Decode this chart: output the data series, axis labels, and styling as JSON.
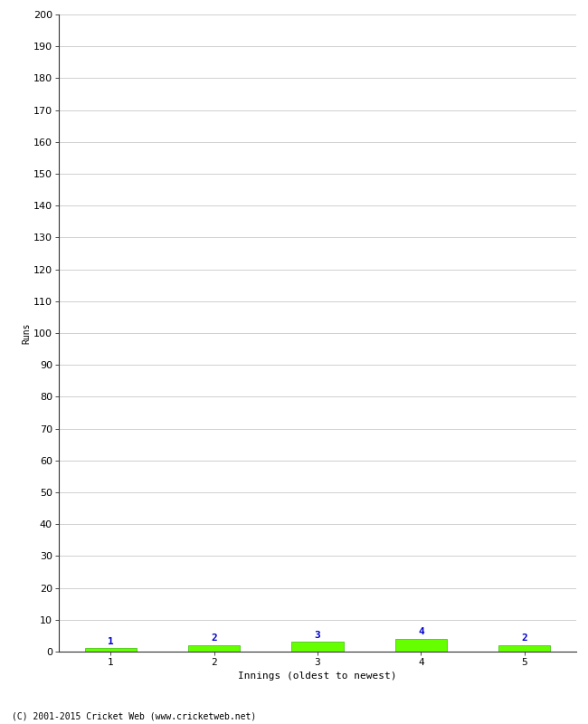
{
  "innings": [
    1,
    2,
    3,
    4,
    5
  ],
  "runs": [
    1,
    2,
    3,
    4,
    2
  ],
  "scores": [
    1,
    2,
    3,
    4,
    2
  ],
  "bar_color": "#66ff00",
  "bar_edge_color": "#33bb00",
  "label_color": "#0000cc",
  "xlabel": "Innings (oldest to newest)",
  "ylabel": "Runs",
  "ylim": [
    0,
    200
  ],
  "yticks": [
    0,
    10,
    20,
    30,
    40,
    50,
    60,
    70,
    80,
    90,
    100,
    110,
    120,
    130,
    140,
    150,
    160,
    170,
    180,
    190,
    200
  ],
  "xticks": [
    1,
    2,
    3,
    4,
    5
  ],
  "grid_color": "#d0d0d0",
  "background_color": "#ffffff",
  "footer_text": "(C) 2001-2015 Cricket Web (www.cricketweb.net)",
  "label_fontsize": 8,
  "axis_fontsize": 8,
  "ylabel_fontsize": 7,
  "footer_fontsize": 7,
  "bar_width": 0.5
}
